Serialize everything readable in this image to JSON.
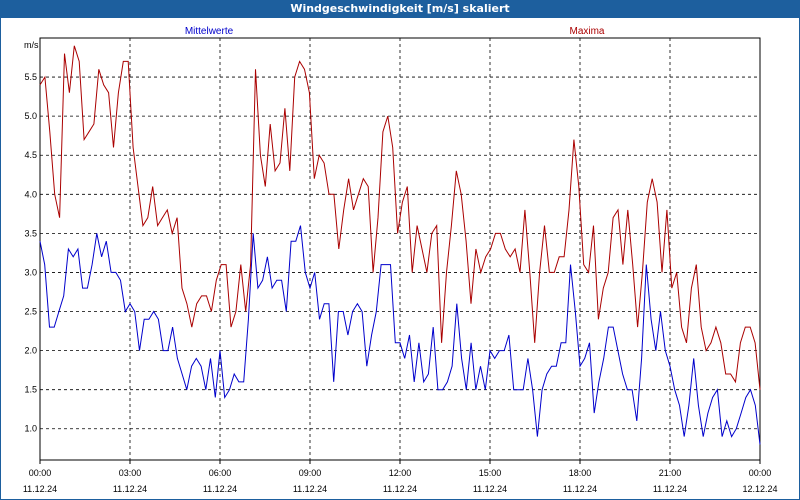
{
  "title": "Windgeschwindigkeit [m/s] skaliert",
  "colors": {
    "titlebar": "#1d5f9e",
    "mittelwerte": "#0000cc",
    "maxima": "#aa0000",
    "grid": "#000000"
  },
  "chart_data": {
    "type": "line",
    "ylabel": "m/s",
    "ylim": [
      0.6,
      6.0
    ],
    "yticks": [
      "1.0",
      "1.5",
      "2.0",
      "2.5",
      "3.0",
      "3.5",
      "4.0",
      "4.5",
      "5.0",
      "5.5"
    ],
    "xlim": [
      0,
      24
    ],
    "xticks": [
      {
        "time": "00:00",
        "date": "11.12.24"
      },
      {
        "time": "03:00",
        "date": "11.12.24"
      },
      {
        "time": "06:00",
        "date": "11.12.24"
      },
      {
        "time": "09:00",
        "date": "11.12.24"
      },
      {
        "time": "12:00",
        "date": "11.12.24"
      },
      {
        "time": "15:00",
        "date": "11.12.24"
      },
      {
        "time": "18:00",
        "date": "11.12.24"
      },
      {
        "time": "21:00",
        "date": "11.12.24"
      },
      {
        "time": "00:00",
        "date": "12.12.24"
      }
    ],
    "grid": true,
    "series": [
      {
        "name": "Mittelwerte",
        "values": [
          3.4,
          3.1,
          2.3,
          2.3,
          2.5,
          2.7,
          3.3,
          3.2,
          3.3,
          2.8,
          2.8,
          3.1,
          3.5,
          3.2,
          3.4,
          3.0,
          3.0,
          2.9,
          2.5,
          2.6,
          2.5,
          2.0,
          2.4,
          2.4,
          2.5,
          2.4,
          2.0,
          2.0,
          2.3,
          1.9,
          1.7,
          1.5,
          1.8,
          1.9,
          1.8,
          1.5,
          1.9,
          1.4,
          2.0,
          1.4,
          1.5,
          1.7,
          1.6,
          1.6,
          2.4,
          3.5,
          2.8,
          2.9,
          3.2,
          2.8,
          2.9,
          2.9,
          2.5,
          3.4,
          3.4,
          3.6,
          3.0,
          2.8,
          3.0,
          2.4,
          2.6,
          2.6,
          1.6,
          2.5,
          2.5,
          2.2,
          2.5,
          2.6,
          2.5,
          1.8,
          2.2,
          2.5,
          3.1,
          3.1,
          3.1,
          2.1,
          2.1,
          1.9,
          2.2,
          1.6,
          2.1,
          1.6,
          1.7,
          2.3,
          1.5,
          1.5,
          1.6,
          1.8,
          2.6,
          1.9,
          1.5,
          2.1,
          1.5,
          1.8,
          1.5,
          2.0,
          1.9,
          2.0,
          2.0,
          2.2,
          1.5,
          1.5,
          1.5,
          1.9,
          1.5,
          0.9,
          1.5,
          1.7,
          1.8,
          1.8,
          2.1,
          2.1,
          3.1,
          2.5,
          1.8,
          1.9,
          2.1,
          1.2,
          1.6,
          1.9,
          2.3,
          2.3,
          2.0,
          1.7,
          1.5,
          1.5,
          1.1,
          1.9,
          3.1,
          2.4,
          2.0,
          2.5,
          2.0,
          1.8,
          1.5,
          1.3,
          0.9,
          1.3,
          1.9,
          1.3,
          0.9,
          1.2,
          1.4,
          1.5,
          0.9,
          1.1,
          0.9,
          1.0,
          1.2,
          1.4,
          1.5,
          1.3,
          0.8
        ]
      },
      {
        "name": "Maxima",
        "values": [
          5.4,
          5.5,
          4.8,
          4.0,
          3.7,
          5.8,
          5.3,
          5.9,
          5.7,
          4.7,
          4.8,
          4.9,
          5.6,
          5.4,
          5.3,
          4.6,
          5.3,
          5.7,
          5.7,
          4.6,
          4.1,
          3.6,
          3.7,
          4.1,
          3.6,
          3.7,
          3.8,
          3.5,
          3.7,
          2.8,
          2.6,
          2.3,
          2.6,
          2.7,
          2.7,
          2.5,
          2.9,
          3.1,
          3.1,
          2.3,
          2.5,
          3.1,
          2.5,
          3.1,
          5.6,
          4.5,
          4.1,
          4.9,
          4.3,
          4.4,
          5.1,
          4.3,
          5.5,
          5.7,
          5.6,
          5.3,
          4.2,
          4.5,
          4.4,
          4.0,
          4.0,
          3.3,
          3.8,
          4.2,
          3.8,
          4.0,
          4.2,
          4.1,
          3.0,
          3.7,
          4.8,
          5.0,
          4.6,
          3.5,
          3.9,
          4.1,
          3.0,
          3.6,
          3.3,
          3.0,
          3.5,
          3.6,
          2.1,
          3.0,
          3.6,
          4.3,
          4.0,
          3.4,
          2.6,
          3.3,
          3.0,
          3.2,
          3.3,
          3.5,
          3.5,
          3.3,
          3.2,
          3.3,
          3.0,
          3.8,
          3.0,
          2.1,
          3.0,
          3.6,
          3.0,
          3.0,
          3.2,
          3.2,
          3.8,
          4.7,
          4.1,
          3.1,
          3.0,
          3.6,
          2.4,
          2.8,
          3.0,
          3.7,
          3.8,
          3.1,
          3.8,
          3.1,
          2.3,
          3.0,
          3.9,
          4.2,
          3.9,
          3.0,
          3.8,
          2.8,
          3.0,
          2.3,
          2.1,
          2.8,
          3.1,
          2.3,
          2.0,
          2.1,
          2.3,
          2.1,
          1.7,
          1.7,
          1.6,
          2.1,
          2.3,
          2.3,
          2.1,
          1.5
        ]
      }
    ]
  }
}
